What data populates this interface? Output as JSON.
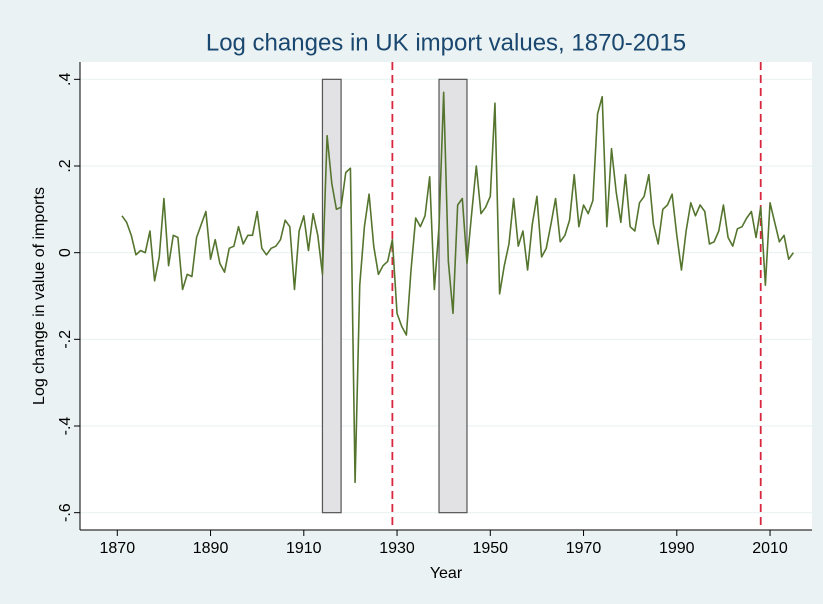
{
  "chart_data": {
    "type": "line",
    "title": "Log changes in UK import values, 1870-2015",
    "x_label": "Year",
    "y_label": "Log change in value of imports",
    "x": [
      1871,
      1872,
      1873,
      1874,
      1875,
      1876,
      1877,
      1878,
      1879,
      1880,
      1881,
      1882,
      1883,
      1884,
      1885,
      1886,
      1887,
      1888,
      1889,
      1890,
      1891,
      1892,
      1893,
      1894,
      1895,
      1896,
      1897,
      1898,
      1899,
      1900,
      1901,
      1902,
      1903,
      1904,
      1905,
      1906,
      1907,
      1908,
      1909,
      1910,
      1911,
      1912,
      1913,
      1914,
      1915,
      1916,
      1917,
      1918,
      1919,
      1920,
      1921,
      1922,
      1923,
      1924,
      1925,
      1926,
      1927,
      1928,
      1929,
      1930,
      1931,
      1932,
      1933,
      1934,
      1935,
      1936,
      1937,
      1938,
      1939,
      1940,
      1941,
      1942,
      1943,
      1944,
      1945,
      1946,
      1947,
      1948,
      1949,
      1950,
      1951,
      1952,
      1953,
      1954,
      1955,
      1956,
      1957,
      1958,
      1959,
      1960,
      1961,
      1962,
      1963,
      1964,
      1965,
      1966,
      1967,
      1968,
      1969,
      1970,
      1971,
      1972,
      1973,
      1974,
      1975,
      1976,
      1977,
      1978,
      1979,
      1980,
      1981,
      1982,
      1983,
      1984,
      1985,
      1986,
      1987,
      1988,
      1989,
      1990,
      1991,
      1992,
      1993,
      1994,
      1995,
      1996,
      1997,
      1998,
      1999,
      2000,
      2001,
      2002,
      2003,
      2004,
      2005,
      2006,
      2007,
      2008,
      2009,
      2010,
      2011,
      2012,
      2013,
      2014,
      2015
    ],
    "series": [
      {
        "name": "Log change in value of imports",
        "color": "#55752f",
        "values": [
          0.085,
          0.07,
          0.04,
          -0.005,
          0.005,
          0.0,
          0.05,
          -0.065,
          -0.01,
          0.125,
          -0.03,
          0.04,
          0.035,
          -0.085,
          -0.05,
          -0.055,
          0.035,
          0.065,
          0.095,
          -0.015,
          0.03,
          -0.025,
          -0.045,
          0.01,
          0.015,
          0.06,
          0.02,
          0.04,
          0.04,
          0.095,
          0.01,
          -0.005,
          0.01,
          0.015,
          0.03,
          0.075,
          0.06,
          -0.085,
          0.05,
          0.085,
          0.005,
          0.09,
          0.04,
          -0.05,
          0.27,
          0.16,
          0.1,
          0.105,
          0.185,
          0.195,
          -0.53,
          -0.075,
          0.06,
          0.135,
          0.015,
          -0.05,
          -0.03,
          -0.02,
          0.03,
          -0.14,
          -0.17,
          -0.19,
          -0.04,
          0.08,
          0.06,
          0.085,
          0.175,
          -0.085,
          0.06,
          0.37,
          -0.02,
          -0.14,
          0.11,
          0.125,
          -0.025,
          0.09,
          0.2,
          0.09,
          0.105,
          0.13,
          0.345,
          -0.095,
          -0.03,
          0.02,
          0.125,
          0.015,
          0.05,
          -0.04,
          0.065,
          0.13,
          -0.01,
          0.01,
          0.065,
          0.125,
          0.025,
          0.04,
          0.075,
          0.18,
          0.06,
          0.11,
          0.09,
          0.12,
          0.32,
          0.36,
          0.06,
          0.24,
          0.14,
          0.07,
          0.18,
          0.06,
          0.05,
          0.115,
          0.13,
          0.18,
          0.065,
          0.02,
          0.1,
          0.11,
          0.135,
          0.04,
          -0.04,
          0.05,
          0.115,
          0.085,
          0.11,
          0.095,
          0.02,
          0.025,
          0.05,
          0.11,
          0.035,
          0.015,
          0.055,
          0.06,
          0.08,
          0.095,
          0.035,
          0.105,
          -0.075,
          0.115,
          0.07,
          0.025,
          0.04,
          -0.015,
          0.0
        ]
      }
    ],
    "shaded_ranges": [
      [
        1914,
        1918
      ],
      [
        1939,
        1945
      ]
    ],
    "shade_color": "#e2e2e4",
    "reference_lines": [
      1929,
      2008
    ],
    "reference_color": "#d7263d",
    "xlim": [
      1862,
      2019
    ],
    "ylim": [
      -0.64,
      0.44
    ],
    "xticks": [
      1870,
      1890,
      1910,
      1930,
      1950,
      1970,
      1990,
      2010
    ],
    "yticks": [
      {
        "value": 0.4,
        "label": ".4"
      },
      {
        "value": 0.2,
        "label": ".2"
      },
      0,
      {
        "value": -0.2,
        "label": "-.2"
      },
      {
        "value": -0.4,
        "label": "-.4"
      },
      {
        "value": -0.6,
        "label": "-.6"
      }
    ],
    "grid": true
  }
}
